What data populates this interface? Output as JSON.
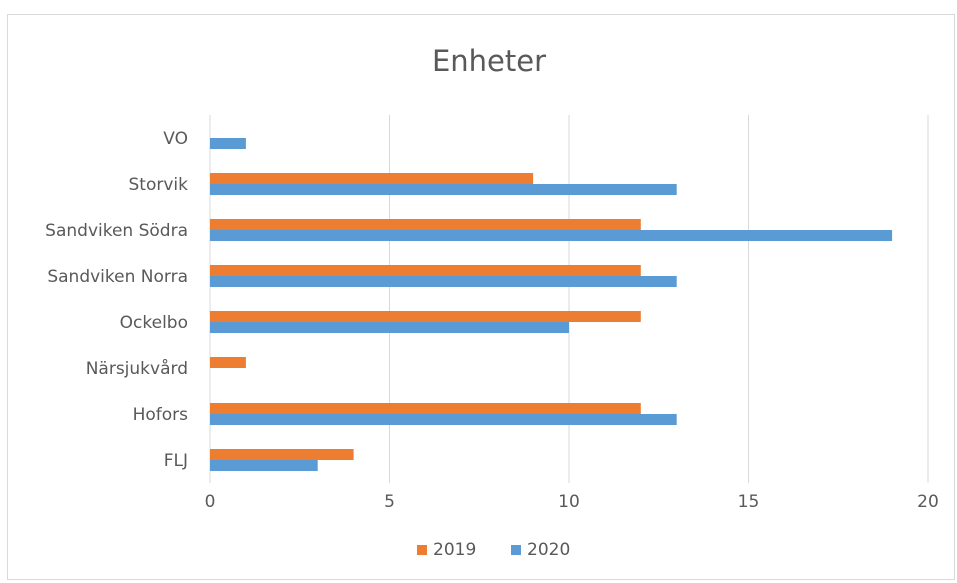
{
  "chart_data": {
    "type": "bar",
    "orientation": "horizontal",
    "title": "Enheter",
    "xlabel": "",
    "ylabel": "",
    "categories": [
      "VO",
      "Storvik",
      "Sandviken Södra",
      "Sandviken Norra",
      "Ockelbo",
      "Närsjukvård",
      "Hofors",
      "FLJ"
    ],
    "series": [
      {
        "name": "2019",
        "color": "#ed7d31",
        "values": [
          0,
          9,
          12,
          12,
          12,
          1,
          12,
          4
        ]
      },
      {
        "name": "2020",
        "color": "#5b9bd5",
        "values": [
          1,
          13,
          19,
          13,
          10,
          0,
          13,
          3
        ]
      }
    ],
    "xlim": [
      0,
      20
    ],
    "xticks": [
      "0",
      "5",
      "10",
      "15",
      "20"
    ],
    "grid": true,
    "legend_position": "bottom"
  }
}
